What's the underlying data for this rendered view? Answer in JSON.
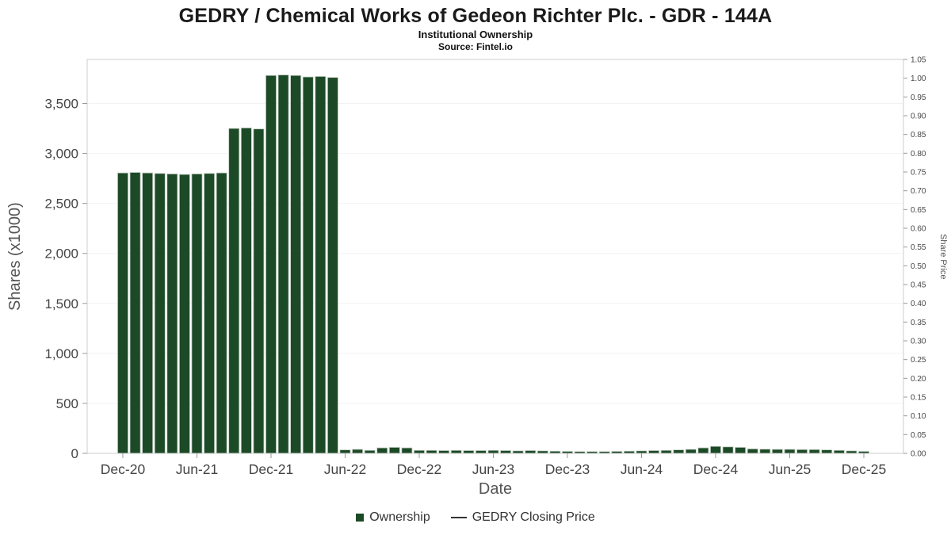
{
  "header": {
    "title": "GEDRY / Chemical Works of Gedeon Richter Plc. - GDR - 144A",
    "subtitle": "Institutional Ownership",
    "source": "Source: Fintel.io"
  },
  "axes": {
    "left_label": "Shares (x1000)",
    "bottom_label": "Date",
    "right_label": "Share Price"
  },
  "legend": {
    "ownership": "Ownership",
    "price": "GEDRY Closing Price"
  },
  "colors": {
    "bar": "#1c4a26",
    "bar_edge": "#c3cec4",
    "price_line": "#333333",
    "axis_text": "#444444",
    "axis_title": "#555555",
    "grid": "#f2f2f2",
    "border": "#cccccc",
    "tick": "#999999"
  },
  "chart_data": {
    "type": "bar",
    "title": "GEDRY / Chemical Works of Gedeon Richter Plc. - GDR - 144A",
    "subtitle": "Institutional Ownership",
    "source": "Source: Fintel.io",
    "xlabel": "Date",
    "ylabel_left": "Shares (x1000)",
    "ylabel_right": "Share Price",
    "legend": [
      "Ownership",
      "GEDRY Closing Price"
    ],
    "legend_position": "bottom",
    "grid": "faint-horizontal",
    "months": [
      "Dec-20",
      "Jan-21",
      "Feb-21",
      "Mar-21",
      "Apr-21",
      "May-21",
      "Jun-21",
      "Jul-21",
      "Aug-21",
      "Sep-21",
      "Oct-21",
      "Nov-21",
      "Dec-21",
      "Jan-22",
      "Feb-22",
      "Mar-22",
      "Apr-22",
      "May-22",
      "Jun-22",
      "Jul-22",
      "Aug-22",
      "Sep-22",
      "Oct-22",
      "Nov-22",
      "Dec-22",
      "Jan-23",
      "Feb-23",
      "Mar-23",
      "Apr-23",
      "May-23",
      "Jun-23",
      "Jul-23",
      "Aug-23",
      "Sep-23",
      "Oct-23",
      "Nov-23",
      "Dec-23",
      "Jan-24",
      "Feb-24",
      "Mar-24",
      "Apr-24",
      "May-24",
      "Jun-24",
      "Jul-24",
      "Aug-24",
      "Sep-24",
      "Oct-24",
      "Nov-24",
      "Dec-24",
      "Jan-25",
      "Feb-25",
      "Mar-25",
      "Apr-25",
      "May-25",
      "Jun-25",
      "Jul-25",
      "Aug-25",
      "Sep-25",
      "Oct-25",
      "Nov-25",
      "Dec-25"
    ],
    "values": [
      2805,
      2810,
      2805,
      2800,
      2795,
      2790,
      2795,
      2800,
      2805,
      3250,
      3255,
      3245,
      3780,
      3785,
      3780,
      3765,
      3770,
      3760,
      35,
      40,
      30,
      55,
      60,
      55,
      30,
      30,
      28,
      30,
      28,
      28,
      30,
      28,
      25,
      28,
      25,
      22,
      20,
      18,
      18,
      18,
      20,
      22,
      25,
      28,
      30,
      35,
      40,
      55,
      70,
      65,
      60,
      45,
      42,
      40,
      40,
      38,
      38,
      35,
      30,
      25,
      20
    ],
    "x_tick_indices": [
      0,
      6,
      12,
      18,
      24,
      30,
      36,
      42,
      48,
      54,
      60
    ],
    "x_tick_labels": [
      "Dec-20",
      "Jun-21",
      "Dec-21",
      "Jun-22",
      "Dec-22",
      "Jun-23",
      "Dec-23",
      "Jun-24",
      "Dec-24",
      "Jun-25",
      "Dec-25"
    ],
    "left_ticks": [
      0,
      500,
      1000,
      1500,
      2000,
      2500,
      3000,
      3500
    ],
    "ylim_left": [
      0,
      3940
    ],
    "ylim_right": [
      0,
      1.05
    ],
    "right_tick_step": 0.05
  }
}
